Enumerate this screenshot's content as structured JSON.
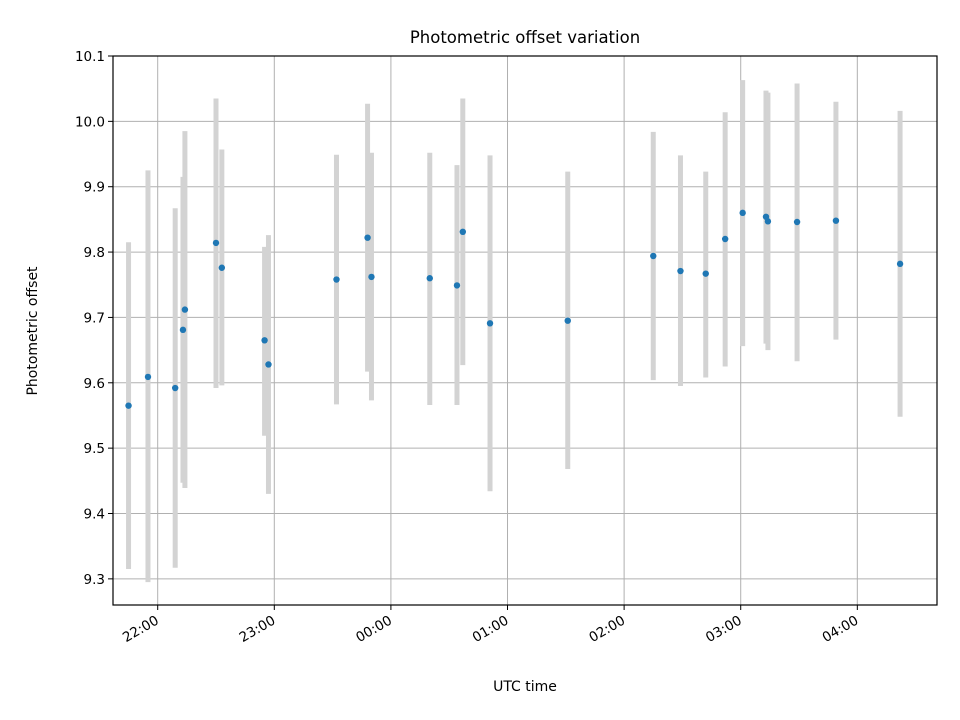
{
  "chart_data": {
    "type": "scatter",
    "title": "Photometric offset variation",
    "xlabel": "UTC time",
    "ylabel": "Photometric offset",
    "grid": true,
    "ylim": [
      9.26,
      10.1
    ],
    "xlim": [
      "21:37",
      "04:41"
    ],
    "x_date_reference_note": "",
    "yticks": [
      "9.3",
      "9.4",
      "9.5",
      "9.6",
      "9.7",
      "9.8",
      "9.9",
      "10.0",
      "10.1"
    ],
    "xticks": [
      "22:00",
      "23:00",
      "00:00",
      "01:00",
      "02:00",
      "03:00",
      "04:00"
    ],
    "marker_color": "#1f77b4",
    "errorbar_color": "#d3d3d3",
    "points": [
      {
        "x": "21:45",
        "y": 9.565,
        "ylow": 9.315,
        "yhigh": 9.815
      },
      {
        "x": "21:55",
        "y": 9.609,
        "ylow": 9.295,
        "yhigh": 9.925
      },
      {
        "x": "22:09",
        "y": 9.592,
        "ylow": 9.317,
        "yhigh": 9.867
      },
      {
        "x": "22:13",
        "y": 9.681,
        "ylow": 9.447,
        "yhigh": 9.915
      },
      {
        "x": "22:14",
        "y": 9.712,
        "ylow": 9.439,
        "yhigh": 9.985
      },
      {
        "x": "22:30",
        "y": 9.814,
        "ylow": 9.592,
        "yhigh": 10.035
      },
      {
        "x": "22:33",
        "y": 9.776,
        "ylow": 9.596,
        "yhigh": 9.957
      },
      {
        "x": "22:55",
        "y": 9.665,
        "ylow": 9.519,
        "yhigh": 9.808
      },
      {
        "x": "22:57",
        "y": 9.628,
        "ylow": 9.43,
        "yhigh": 9.826
      },
      {
        "x": "23:32",
        "y": 9.758,
        "ylow": 9.567,
        "yhigh": 9.949
      },
      {
        "x": "23:48",
        "y": 9.822,
        "ylow": 9.617,
        "yhigh": 10.027
      },
      {
        "x": "23:50",
        "y": 9.762,
        "ylow": 9.573,
        "yhigh": 9.952
      },
      {
        "x": "00:20",
        "y": 9.76,
        "ylow": 9.566,
        "yhigh": 9.952
      },
      {
        "x": "00:34",
        "y": 9.749,
        "ylow": 9.566,
        "yhigh": 9.933
      },
      {
        "x": "00:37",
        "y": 9.831,
        "ylow": 9.627,
        "yhigh": 10.035
      },
      {
        "x": "00:51",
        "y": 9.691,
        "ylow": 9.434,
        "yhigh": 9.948
      },
      {
        "x": "01:31",
        "y": 9.695,
        "ylow": 9.468,
        "yhigh": 9.923
      },
      {
        "x": "02:15",
        "y": 9.794,
        "ylow": 9.604,
        "yhigh": 9.984
      },
      {
        "x": "02:29",
        "y": 9.771,
        "ylow": 9.595,
        "yhigh": 9.948
      },
      {
        "x": "02:42",
        "y": 9.767,
        "ylow": 9.608,
        "yhigh": 9.923
      },
      {
        "x": "02:52",
        "y": 9.82,
        "ylow": 9.625,
        "yhigh": 10.014
      },
      {
        "x": "03:01",
        "y": 9.86,
        "ylow": 9.656,
        "yhigh": 10.063
      },
      {
        "x": "03:13",
        "y": 9.854,
        "ylow": 9.66,
        "yhigh": 10.047
      },
      {
        "x": "03:14",
        "y": 9.847,
        "ylow": 9.65,
        "yhigh": 10.044
      },
      {
        "x": "03:29",
        "y": 9.846,
        "ylow": 9.633,
        "yhigh": 10.058
      },
      {
        "x": "03:49",
        "y": 9.848,
        "ylow": 9.666,
        "yhigh": 10.03
      },
      {
        "x": "04:22",
        "y": 9.782,
        "ylow": 9.548,
        "yhigh": 10.016
      }
    ]
  }
}
